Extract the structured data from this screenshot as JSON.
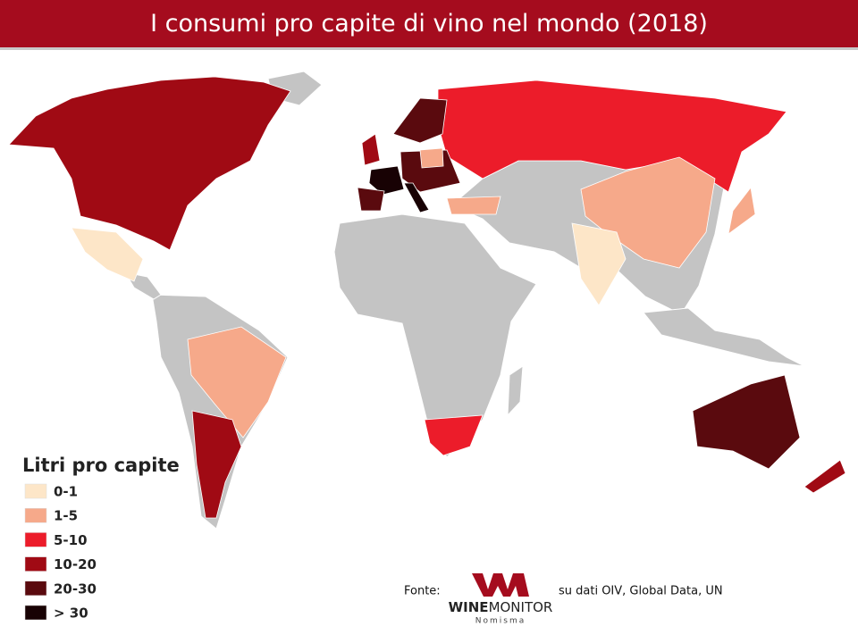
{
  "header": {
    "title": "I consumi pro capite di vino nel mondo (2018)"
  },
  "legend": {
    "title": "Litri pro capite",
    "items": [
      {
        "label": "0-1",
        "color": "#fde6c8"
      },
      {
        "label": "1-5",
        "color": "#f6a98a"
      },
      {
        "label": "5-10",
        "color": "#ec1c2a"
      },
      {
        "label": "10-20",
        "color": "#a00a14"
      },
      {
        "label": "20-30",
        "color": "#5a0a0e"
      },
      {
        "label": "> 30",
        "color": "#180204"
      }
    ]
  },
  "source": {
    "prefix": "Fonte:",
    "suffix": "su dati OIV, Global Data, UN",
    "logo": {
      "brand_bold": "WINE",
      "brand_light": "MONITOR",
      "sub": "Nomisma"
    }
  }
}
